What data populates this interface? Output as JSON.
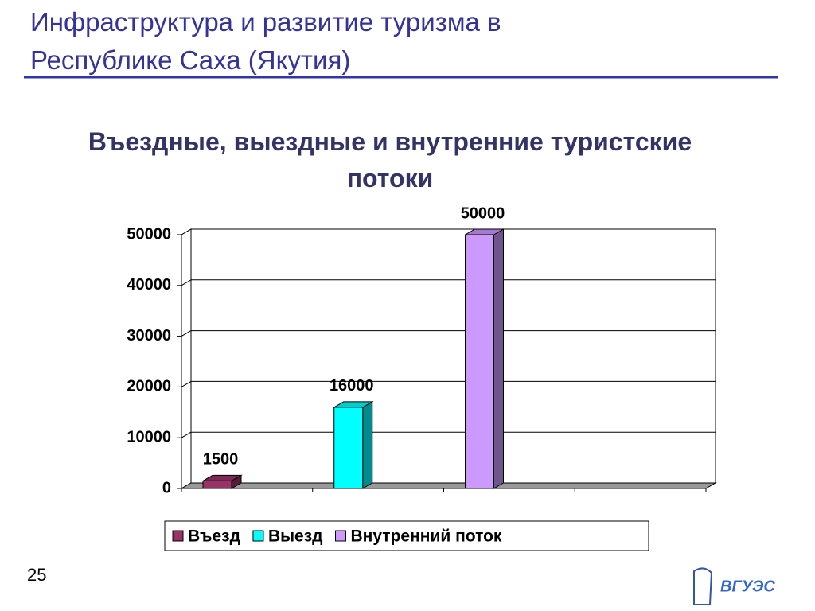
{
  "slide": {
    "title": "Инфраструктура и развитие туризма в Республике Саха (Якутия)",
    "page": "25",
    "logo": "ВГУЭС"
  },
  "chart_data": {
    "type": "bar3d",
    "title": "Въездные, выездные и внутренние туристские потоки",
    "categories": [
      null
    ],
    "series": [
      {
        "name": "Въезд",
        "color": "#993366",
        "values": [
          1500
        ]
      },
      {
        "name": "Выезд",
        "color": "#00ffff",
        "values": [
          16000
        ]
      },
      {
        "name": "Внутренний поток",
        "color": "#cc99ff",
        "values": [
          50000
        ]
      }
    ],
    "ylim": [
      0,
      50000
    ],
    "yticks": [
      0,
      10000,
      20000,
      30000,
      40000,
      50000
    ],
    "grid": true,
    "legend": "bottom"
  }
}
